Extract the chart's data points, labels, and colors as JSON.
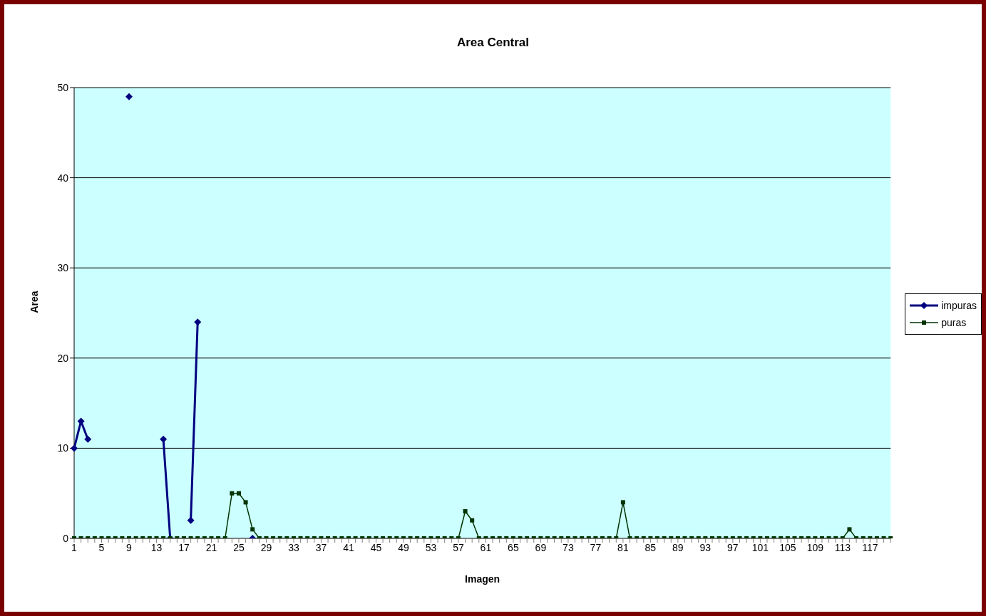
{
  "chart_data": {
    "type": "line",
    "title": "Area Central",
    "xlabel": "Imagen",
    "ylabel": "Area",
    "categories": [
      "1",
      null,
      null,
      null,
      "5",
      null,
      null,
      null,
      "9",
      null,
      null,
      null,
      "13",
      null,
      null,
      null,
      "17",
      null,
      null,
      null,
      "21",
      null,
      null,
      null,
      "25",
      null,
      null,
      null,
      "29",
      null,
      null,
      null,
      "33",
      null,
      null,
      null,
      "37",
      null,
      null,
      null,
      "41",
      null,
      null,
      null,
      "45",
      null,
      null,
      null,
      "49",
      null,
      null,
      null,
      "53",
      null,
      null,
      null,
      "57",
      null,
      null,
      null,
      "61",
      null,
      null,
      null,
      "65",
      null,
      null,
      null,
      "69",
      null,
      null,
      null,
      "73",
      null,
      null,
      null,
      "77",
      null,
      null,
      null,
      "81",
      null,
      null,
      null,
      "85",
      null,
      null,
      null,
      "89",
      null,
      null,
      null,
      "93",
      null,
      null,
      null,
      "97",
      null,
      null,
      null,
      "101",
      null,
      null,
      null,
      "105",
      null,
      null,
      null,
      "109",
      null,
      null,
      null,
      "113",
      null,
      null,
      null,
      "117",
      null,
      null,
      null
    ],
    "series": [
      {
        "name": "impuras",
        "color": "#000080",
        "marker": "diamond",
        "values": [
          10,
          13,
          11,
          null,
          null,
          null,
          null,
          null,
          49,
          null,
          null,
          null,
          null,
          11,
          0,
          null,
          null,
          2,
          24,
          null,
          null,
          null,
          null,
          null,
          null,
          null,
          0,
          null,
          null,
          null,
          null,
          null,
          null,
          null,
          null,
          null,
          null,
          null,
          null,
          null,
          null,
          null,
          null,
          null,
          null,
          null,
          null,
          null,
          null,
          null,
          null,
          null,
          null,
          null,
          null,
          null,
          null,
          null,
          null,
          null,
          null,
          null,
          null,
          null,
          null,
          null,
          null,
          null,
          null,
          null,
          null,
          null,
          null,
          null,
          null,
          null,
          null,
          null,
          null,
          null,
          null,
          null,
          null,
          null,
          null,
          null,
          null,
          null,
          null,
          null,
          null,
          null,
          null,
          null,
          null,
          null,
          null,
          null,
          null,
          null,
          null,
          null,
          null,
          null,
          null,
          null,
          null,
          null,
          null,
          null,
          null,
          null,
          null,
          null,
          null,
          null,
          null,
          null,
          null,
          null
        ]
      },
      {
        "name": "puras",
        "color": "#003300",
        "marker": "square",
        "values": [
          0,
          0,
          0,
          0,
          0,
          0,
          0,
          0,
          0,
          0,
          0,
          0,
          0,
          0,
          0,
          0,
          0,
          0,
          0,
          0,
          0,
          0,
          0,
          5,
          5,
          4,
          1,
          0,
          0,
          0,
          0,
          0,
          0,
          0,
          0,
          0,
          0,
          0,
          0,
          0,
          0,
          0,
          0,
          0,
          0,
          0,
          0,
          0,
          0,
          0,
          0,
          0,
          0,
          0,
          0,
          0,
          0,
          3,
          2,
          0,
          0,
          0,
          0,
          0,
          0,
          0,
          0,
          0,
          0,
          0,
          0,
          0,
          0,
          0,
          0,
          0,
          0,
          0,
          0,
          0,
          4,
          0,
          0,
          0,
          0,
          0,
          0,
          0,
          0,
          0,
          0,
          0,
          0,
          0,
          0,
          0,
          0,
          0,
          0,
          0,
          0,
          0,
          0,
          0,
          0,
          0,
          0,
          0,
          0,
          0,
          0,
          0,
          0,
          1,
          0,
          0,
          0,
          0,
          0,
          0
        ]
      }
    ],
    "ylim": [
      0,
      50
    ],
    "yticks": [
      0,
      10,
      20,
      30,
      40,
      50
    ],
    "grid": "y",
    "legend": "right"
  }
}
